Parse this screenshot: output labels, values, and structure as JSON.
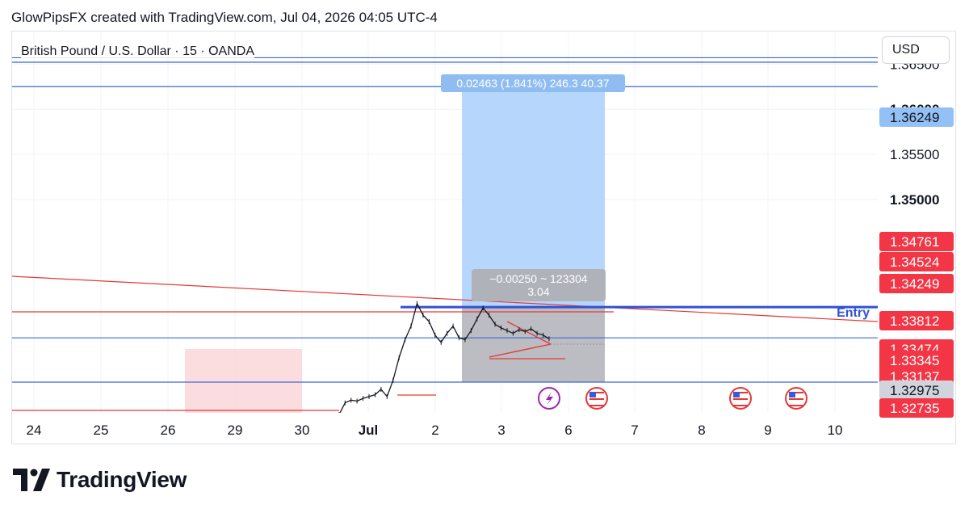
{
  "header": {
    "caption": "GlowPipsFX created with TradingView.com, Jul 04, 2026 04:05 UTC-4"
  },
  "symbol": {
    "title": "British Pound / U.S. Dollar · 15 · OANDA"
  },
  "currency": {
    "label": "USD"
  },
  "footer": {
    "brand": "TradingView"
  },
  "colors": {
    "target_zone": "#b3d4fb",
    "stop_zone": "#b8b9c0",
    "entry_line": "#3152d1",
    "blue_level": "#3d68d6",
    "red_line": "#e53935",
    "price_tag_red": "#f23645",
    "price_tag_gray": "#d1d4dc",
    "price_tag_blue": "#93c0f5",
    "pink_zone": "#f9d1d6"
  },
  "chart_data": {
    "type": "line",
    "symbol": "GBPUSD",
    "timeframe": "15",
    "ylim": [
      1.3264,
      1.3686
    ],
    "x_ticks": [
      "24",
      "25",
      "26",
      "29",
      "30",
      "Jul",
      "2",
      "3",
      "6",
      "7",
      "8",
      "9",
      "10"
    ],
    "y_ticks": [
      1.365,
      1.36,
      1.355,
      1.35
    ],
    "y_tick_labels": [
      "1.36500",
      "1.36000",
      "1.35500",
      "1.35000"
    ],
    "series": [
      {
        "values": [
          1.3253,
          1.3255,
          1.3262,
          1.3275,
          1.3278,
          1.3277,
          1.328,
          1.3282,
          1.3284,
          1.329,
          1.3282,
          1.33,
          1.3325,
          1.3345,
          1.336,
          1.3385,
          1.3372,
          1.3365,
          1.335,
          1.3342,
          1.3352,
          1.336,
          1.3347,
          1.3345,
          1.3355,
          1.3368,
          1.338,
          1.3372,
          1.3362,
          1.3358,
          1.3355,
          1.3352,
          1.3356,
          1.3354,
          1.3357,
          1.3352,
          1.335,
          1.3346
        ]
      }
    ],
    "price_labels": [
      {
        "text": "1.36249",
        "style": "blue"
      },
      {
        "text": "1.34761",
        "style": "red"
      },
      {
        "text": "1.34524",
        "style": "red"
      },
      {
        "text": "1.34249",
        "style": "red"
      },
      {
        "text": "1.33812",
        "style": "red"
      },
      {
        "text": "1.33474",
        "style": "red"
      },
      {
        "text": "1.33345",
        "style": "red"
      },
      {
        "text": "1.33137",
        "style": "red"
      },
      {
        "text": "1.32975",
        "style": "gray"
      },
      {
        "text": "1.32735",
        "style": "red"
      }
    ],
    "position": {
      "entry": 1.3381,
      "target": 1.3625,
      "stop": 1.3298,
      "target_label": "0.02463 (1.841%) 246.3 40.37",
      "stop_label_line1": "−0.00250 ~ 123304",
      "stop_label_line2": "3.04"
    },
    "annotations": {
      "entry_text": "Entry"
    }
  }
}
